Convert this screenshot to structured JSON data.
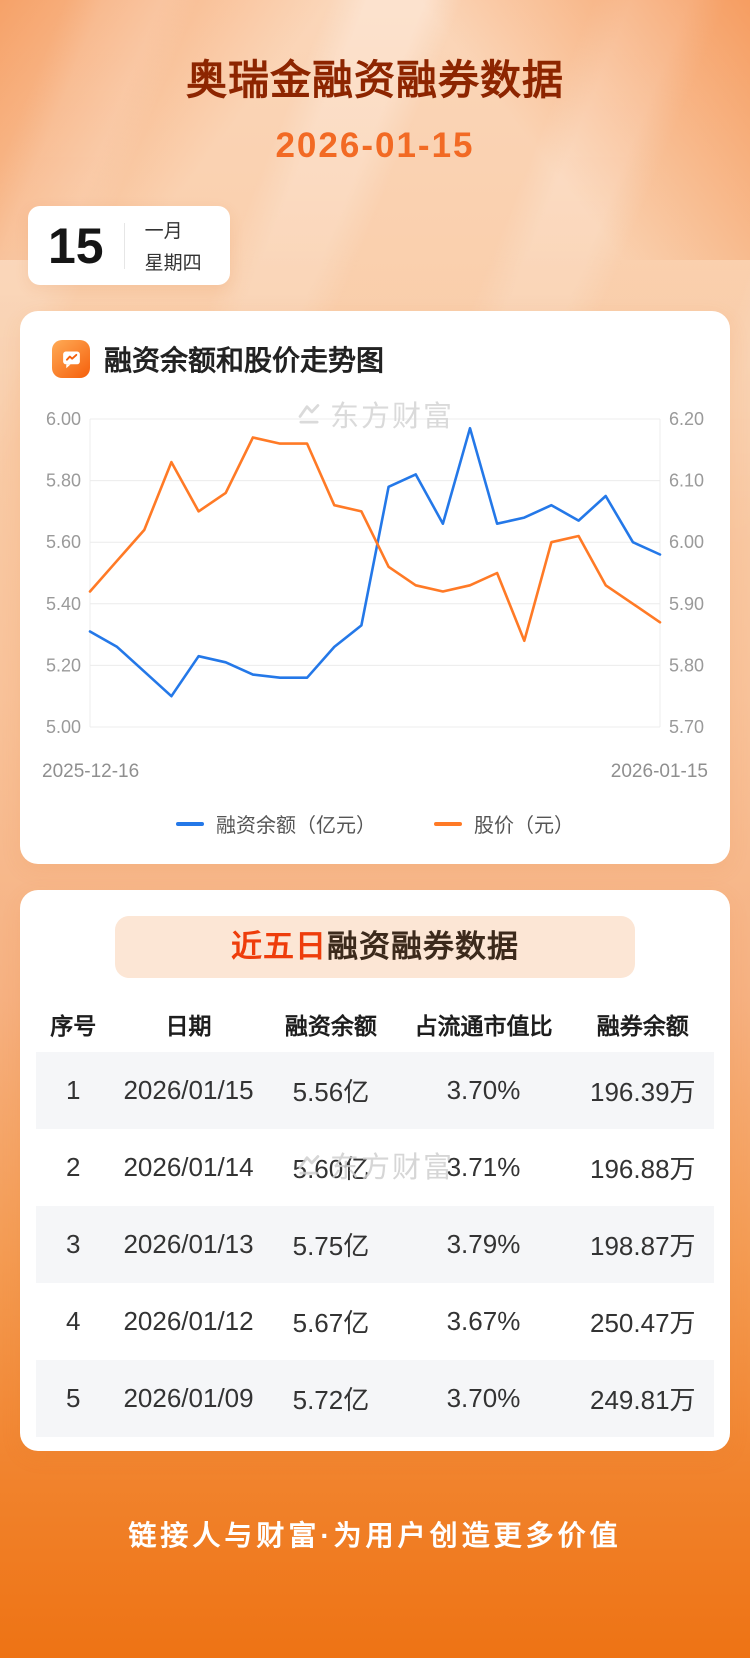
{
  "page": {
    "title": "奥瑞金融资融券数据",
    "date": "2026-01-15",
    "footer": "链接人与财富·为用户创造更多价值"
  },
  "calendar": {
    "day": "15",
    "month": "一月",
    "weekday": "星期四"
  },
  "chart_section": {
    "title": "融资余额和股价走势图",
    "icon": "line-chart-icon",
    "watermark": "东方财富"
  },
  "chart_data": {
    "type": "line",
    "title": "融资余额和股价走势图",
    "x_start_label": "2025-12-16",
    "x_end_label": "2026-01-15",
    "grid": true,
    "legend_position": "bottom",
    "left_axis": {
      "min": 5.0,
      "max": 6.0,
      "ticks": [
        "6.00",
        "5.80",
        "5.60",
        "5.40",
        "5.20",
        "5.00"
      ]
    },
    "right_axis": {
      "min": 5.7,
      "max": 6.2,
      "ticks": [
        "6.20",
        "6.10",
        "6.00",
        "5.90",
        "5.80",
        "5.70"
      ]
    },
    "series": [
      {
        "name": "融资余额（亿元）",
        "axis": "left",
        "color": "#2478e8",
        "values": [
          5.31,
          5.26,
          5.18,
          5.1,
          5.23,
          5.21,
          5.17,
          5.16,
          5.16,
          5.26,
          5.33,
          5.78,
          5.82,
          5.66,
          5.97,
          5.66,
          5.68,
          5.72,
          5.67,
          5.75,
          5.6,
          5.56
        ]
      },
      {
        "name": "股价（元）",
        "axis": "right",
        "color": "#ff7a26",
        "values": [
          5.92,
          5.97,
          6.02,
          6.13,
          6.05,
          6.08,
          6.17,
          6.16,
          6.16,
          6.06,
          6.05,
          5.96,
          5.93,
          5.92,
          5.93,
          5.95,
          5.84,
          6.0,
          6.01,
          5.93,
          5.9,
          5.87
        ]
      }
    ]
  },
  "table_section": {
    "title_highlight": "近五日",
    "title_rest": "融资融券数据",
    "watermark": "东方财富",
    "columns": [
      "序号",
      "日期",
      "融资余额",
      "占流通市值比",
      "融券余额"
    ],
    "rows": [
      [
        "1",
        "2026/01/15",
        "5.56亿",
        "3.70%",
        "196.39万"
      ],
      [
        "2",
        "2026/01/14",
        "5.60亿",
        "3.71%",
        "196.88万"
      ],
      [
        "3",
        "2026/01/13",
        "5.75亿",
        "3.79%",
        "198.87万"
      ],
      [
        "4",
        "2026/01/12",
        "5.67亿",
        "3.67%",
        "250.47万"
      ],
      [
        "5",
        "2026/01/09",
        "5.72亿",
        "3.70%",
        "249.81万"
      ]
    ]
  },
  "colors": {
    "title_red": "#8d2500",
    "accent_orange": "#f26a24",
    "highlight_red": "#ee3d0b",
    "line_blue": "#2478e8",
    "line_orange": "#ff7a26"
  }
}
